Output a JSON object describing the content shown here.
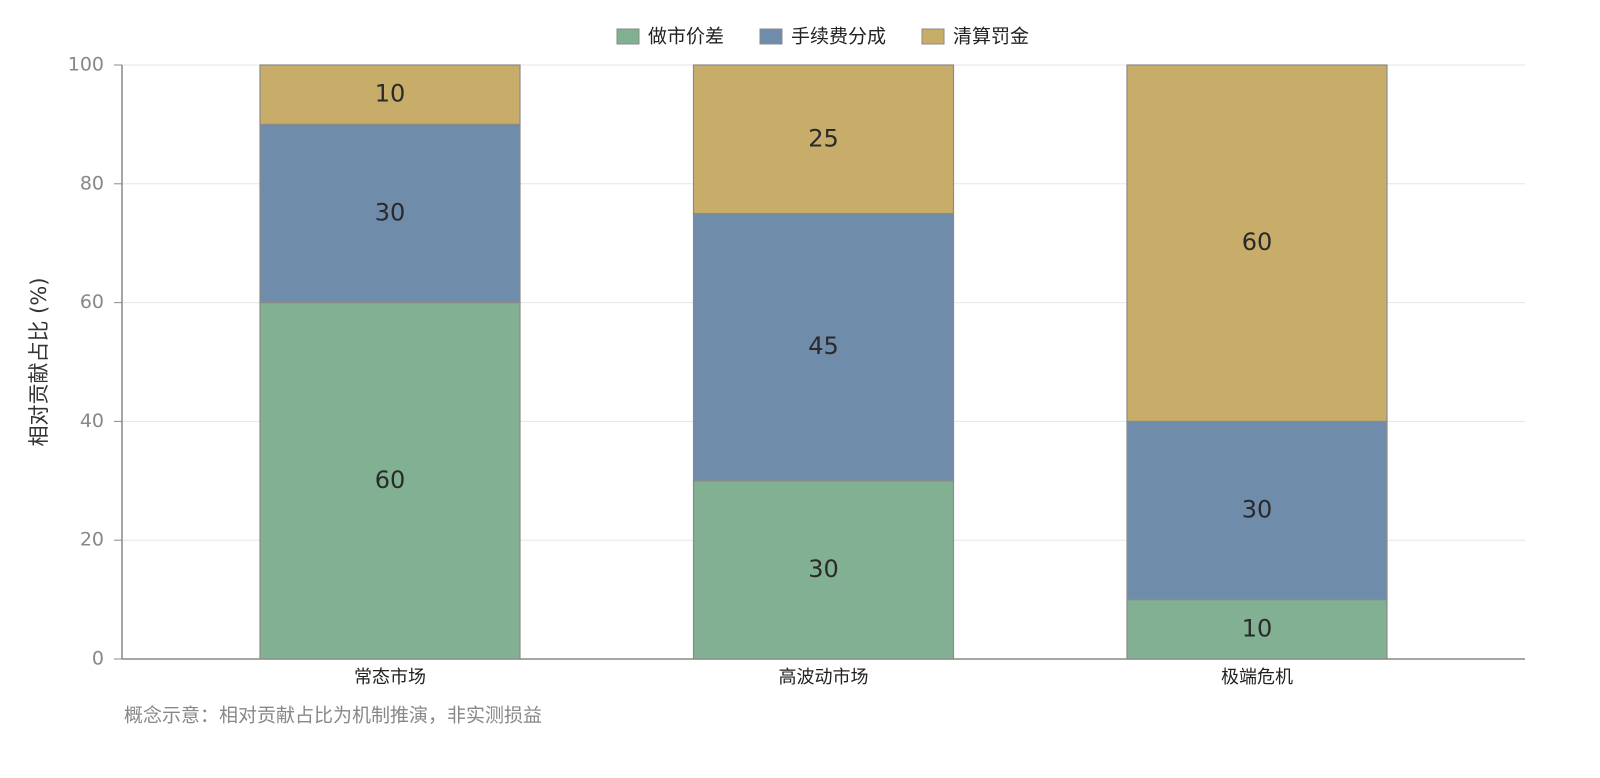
{
  "chart_data": {
    "type": "stacked_bar",
    "y_label": "相对贡献占比 (%)",
    "annotation": "概念示意：相对贡献占比为机制推演，非实测损益",
    "categories": [
      "常态市场",
      "高波动市场",
      "极端危机"
    ],
    "series": [
      {
        "name": "做市价差",
        "color": "#82b093",
        "values": [
          60,
          30,
          10
        ]
      },
      {
        "name": "手续费分成",
        "color": "#6f8caa",
        "values": [
          30,
          45,
          30
        ]
      },
      {
        "name": "清算罚金",
        "color": "#c8ad6a",
        "values": [
          10,
          25,
          60
        ]
      }
    ],
    "ylim": [
      0,
      100
    ],
    "yticks": [
      0,
      20,
      40,
      60,
      80,
      100
    ],
    "grid": true,
    "legend": "top"
  }
}
